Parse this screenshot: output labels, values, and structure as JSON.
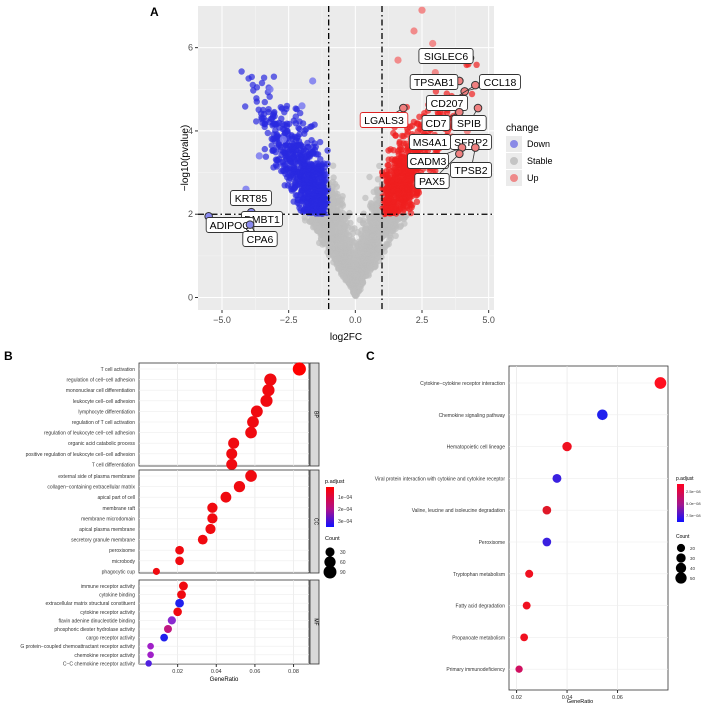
{
  "chart_data": [
    {
      "panel": "A",
      "type": "scatter",
      "title": "",
      "xlabel": "log2FC",
      "ylabel": "−log10(pvalue)",
      "xlim": [
        -5.9,
        5.2
      ],
      "ylim": [
        -0.3,
        7.0
      ],
      "xticks": [
        -5.0,
        -2.5,
        0.0,
        2.5,
        5.0
      ],
      "xtick_labels": [
        "−5.0",
        "−2.5",
        "0.0",
        "2.5",
        "5.0"
      ],
      "yticks": [
        0,
        2,
        4,
        6
      ],
      "ytick_labels": [
        "0",
        "2",
        "4",
        "6"
      ],
      "thresholds": {
        "log2fc": [
          -1,
          1
        ],
        "neglog10p": 2
      },
      "legend": {
        "title": "change",
        "position": "right",
        "items": [
          {
            "label": "Down",
            "color": "#3333dd"
          },
          {
            "label": "Stable",
            "color": "#b8b8b8"
          },
          {
            "label": "Up",
            "color": "#ee2222"
          }
        ]
      },
      "series_colors": {
        "down": "#2a2ae0",
        "stable": "#bdbdbd",
        "up": "#f02020",
        "down_light": "#7a7af0",
        "up_light": "#f27a7a"
      },
      "labeled_genes": [
        {
          "gene": "SIGLEC6",
          "x": 4.3,
          "y": 5.75,
          "change": "Up"
        },
        {
          "gene": "CCL18",
          "x": 4.1,
          "y": 4.95,
          "change": "Up"
        },
        {
          "gene": "TPSAB1",
          "x": 3.9,
          "y": 5.2,
          "change": "Up"
        },
        {
          "gene": "CD207",
          "x": 4.5,
          "y": 5.1,
          "change": "Up"
        },
        {
          "gene": "LGALS3",
          "x": 1.8,
          "y": 4.55,
          "change": "Up"
        },
        {
          "gene": "CD7",
          "x": 3.9,
          "y": 4.45,
          "change": "Up"
        },
        {
          "gene": "SPIB",
          "x": 4.6,
          "y": 4.55,
          "change": "Up"
        },
        {
          "gene": "MS4A1",
          "x": 3.6,
          "y": 3.7,
          "change": "Up"
        },
        {
          "gene": "SFRP2",
          "x": 4.3,
          "y": 3.65,
          "change": "Up"
        },
        {
          "gene": "CADM3",
          "x": 4.0,
          "y": 3.6,
          "change": "Up"
        },
        {
          "gene": "TPSB2",
          "x": 4.5,
          "y": 3.6,
          "change": "Up"
        },
        {
          "gene": "PAX5",
          "x": 3.9,
          "y": 3.45,
          "change": "Up"
        },
        {
          "gene": "KRT85",
          "x": -4.5,
          "y": 2.3,
          "change": "Down"
        },
        {
          "gene": "DMBT1",
          "x": -3.9,
          "y": 2.05,
          "change": "Down"
        },
        {
          "gene": "ADIPOQ",
          "x": -5.5,
          "y": 1.95,
          "change": "Down"
        },
        {
          "gene": "CPA6",
          "x": -3.95,
          "y": 1.75,
          "change": "Down"
        }
      ]
    },
    {
      "panel": "B",
      "type": "scatter",
      "subtype": "dotplot",
      "xlabel": "GeneRatio",
      "xlim": [
        0.0,
        0.088
      ],
      "xticks": [
        0.02,
        0.04,
        0.06,
        0.08
      ],
      "xtick_labels": [
        "0.02",
        "0.04",
        "0.06",
        "0.08"
      ],
      "color_legend": {
        "title": "p.adjust",
        "labels": [
          "1e−04",
          "2e−04",
          "3e−04"
        ]
      },
      "size_legend": {
        "title": "Count",
        "labels": [
          "30",
          "60",
          "90"
        ]
      },
      "facets": [
        {
          "name": "BP",
          "terms": [
            {
              "term": "T cell activation",
              "ratio": 0.083,
              "count": 95,
              "color": "#ff0000"
            },
            {
              "term": "regulation of cell−cell adhesion",
              "ratio": 0.068,
              "count": 78,
              "color": "#f00a10"
            },
            {
              "term": "mononuclear cell differentiation",
              "ratio": 0.067,
              "count": 76,
              "color": "#f00a10"
            },
            {
              "term": "leukocyte cell−cell adhesion",
              "ratio": 0.066,
              "count": 75,
              "color": "#f00a10"
            },
            {
              "term": "lymphocyte differentiation",
              "ratio": 0.061,
              "count": 70,
              "color": "#f00a10"
            },
            {
              "term": "regulation of T cell activation",
              "ratio": 0.059,
              "count": 68,
              "color": "#f00a10"
            },
            {
              "term": "regulation of leukocyte cell−cell adhesion",
              "ratio": 0.058,
              "count": 66,
              "color": "#f00a10"
            },
            {
              "term": "organic acid catabolic process",
              "ratio": 0.049,
              "count": 56,
              "color": "#f00a10"
            },
            {
              "term": "positive regulation of leukocyte cell−cell adhesion",
              "ratio": 0.048,
              "count": 55,
              "color": "#f00a10"
            },
            {
              "term": "T cell differentiation",
              "ratio": 0.048,
              "count": 55,
              "color": "#f00a10"
            }
          ]
        },
        {
          "name": "CC",
          "terms": [
            {
              "term": "external side of plasma membrane",
              "ratio": 0.058,
              "count": 66,
              "color": "#f00a10"
            },
            {
              "term": "collagen−containing extracellular matrix",
              "ratio": 0.052,
              "count": 60,
              "color": "#f00a10"
            },
            {
              "term": "apical part of cell",
              "ratio": 0.045,
              "count": 52,
              "color": "#f00a10"
            },
            {
              "term": "membrane raft",
              "ratio": 0.038,
              "count": 44,
              "color": "#f00a10"
            },
            {
              "term": "membrane microdomain",
              "ratio": 0.038,
              "count": 44,
              "color": "#f00a10"
            },
            {
              "term": "apical plasma membrane",
              "ratio": 0.037,
              "count": 43,
              "color": "#f00a10"
            },
            {
              "term": "secretory granule membrane",
              "ratio": 0.033,
              "count": 38,
              "color": "#f00a10"
            },
            {
              "term": "peroxisome",
              "ratio": 0.021,
              "count": 25,
              "color": "#f00a10"
            },
            {
              "term": "microbody",
              "ratio": 0.021,
              "count": 25,
              "color": "#f00a10"
            },
            {
              "term": "phagocytic cup",
              "ratio": 0.009,
              "count": 11,
              "color": "#f00a10"
            }
          ]
        },
        {
          "name": "MF",
          "terms": [
            {
              "term": "immune receptor activity",
              "ratio": 0.023,
              "count": 27,
              "color": "#f00a10"
            },
            {
              "term": "cytokine binding",
              "ratio": 0.022,
              "count": 26,
              "color": "#f00a10"
            },
            {
              "term": "extracellular matrix structural constituent",
              "ratio": 0.021,
              "count": 25,
              "color": "#2020ee"
            },
            {
              "term": "cytokine receptor activity",
              "ratio": 0.02,
              "count": 24,
              "color": "#f00a10"
            },
            {
              "term": "flavin adenine dinucleotide binding",
              "ratio": 0.017,
              "count": 20,
              "color": "#8a2bd0"
            },
            {
              "term": "phosphoric diester hydrolase activity",
              "ratio": 0.015,
              "count": 18,
              "color": "#c01880"
            },
            {
              "term": "cargo receptor activity",
              "ratio": 0.013,
              "count": 16,
              "color": "#2020ee"
            },
            {
              "term": "G protein−coupled chemoattractant receptor activity",
              "ratio": 0.006,
              "count": 8,
              "color": "#a020c8"
            },
            {
              "term": "chemokine receptor activity",
              "ratio": 0.006,
              "count": 8,
              "color": "#a020c8"
            },
            {
              "term": "C−C chemokine receptor activity",
              "ratio": 0.005,
              "count": 7,
              "color": "#5020e0"
            }
          ]
        }
      ]
    },
    {
      "panel": "C",
      "type": "scatter",
      "subtype": "dotplot",
      "xlabel": "GeneRatio",
      "xlim": [
        0.017,
        0.08
      ],
      "xticks": [
        0.02,
        0.04,
        0.06
      ],
      "xtick_labels": [
        "0.02",
        "0.04",
        "0.06"
      ],
      "color_legend": {
        "title": "p.adjust",
        "labels": [
          "2.5e−08",
          "5.0e−08",
          "7.5e−08"
        ]
      },
      "size_legend": {
        "title": "Count",
        "labels": [
          "20",
          "30",
          "40",
          "50"
        ]
      },
      "terms": [
        {
          "term": "Cytokine−cytokine receptor interaction",
          "ratio": 0.077,
          "count": 55,
          "color": "#ff1020"
        },
        {
          "term": "Chemokine signaling pathway",
          "ratio": 0.054,
          "count": 42,
          "color": "#2020ee"
        },
        {
          "term": "Hematopoietic cell lineage",
          "ratio": 0.04,
          "count": 30,
          "color": "#f01020"
        },
        {
          "term": "Viral protein interaction with cytokine and cytokine receptor",
          "ratio": 0.036,
          "count": 26,
          "color": "#3a20e0"
        },
        {
          "term": "Valine, leucine and isoleucine degradation",
          "ratio": 0.032,
          "count": 24,
          "color": "#e01828"
        },
        {
          "term": "Peroxisome",
          "ratio": 0.032,
          "count": 24,
          "color": "#3a20e0"
        },
        {
          "term": "Tryptophan metabolism",
          "ratio": 0.025,
          "count": 19,
          "color": "#f01020"
        },
        {
          "term": "Fatty acid degradation",
          "ratio": 0.024,
          "count": 18,
          "color": "#f01020"
        },
        {
          "term": "Propanoate metabolism",
          "ratio": 0.023,
          "count": 17,
          "color": "#f01020"
        },
        {
          "term": "Primary immunodeficiency",
          "ratio": 0.021,
          "count": 14,
          "color": "#d01060"
        }
      ]
    }
  ]
}
